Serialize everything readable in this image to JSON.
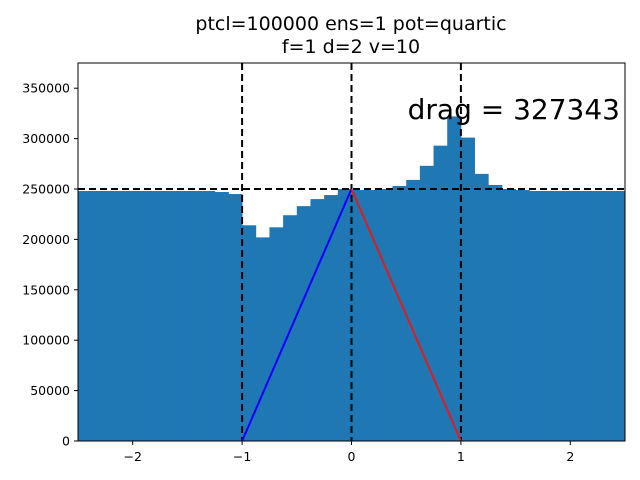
{
  "chart_data": {
    "type": "bar",
    "title_line1": "ptcl=100000 ens=1 pot=quartic",
    "title_line2": "f=1 d=2 v=10",
    "xlabel": "",
    "ylabel": "",
    "xlim": [
      -2.5,
      2.5
    ],
    "ylim": [
      0,
      375000
    ],
    "bar_width": 0.125,
    "x_ticks": [
      -2,
      -1,
      0,
      1,
      2
    ],
    "x_tick_labels": [
      "−2",
      "−1",
      "0",
      "1",
      "2"
    ],
    "y_ticks": [
      0,
      50000,
      100000,
      150000,
      200000,
      250000,
      300000,
      350000
    ],
    "y_tick_labels": [
      "0",
      "50000",
      "100000",
      "150000",
      "200000",
      "250000",
      "300000",
      "350000"
    ],
    "bins": [
      {
        "x0": -2.5,
        "value": 248000
      },
      {
        "x0": -2.375,
        "value": 248000
      },
      {
        "x0": -2.25,
        "value": 248000
      },
      {
        "x0": -2.125,
        "value": 248000
      },
      {
        "x0": -2.0,
        "value": 248000
      },
      {
        "x0": -1.875,
        "value": 248000
      },
      {
        "x0": -1.75,
        "value": 248000
      },
      {
        "x0": -1.625,
        "value": 248000
      },
      {
        "x0": -1.5,
        "value": 248000
      },
      {
        "x0": -1.375,
        "value": 248000
      },
      {
        "x0": -1.25,
        "value": 247000
      },
      {
        "x0": -1.125,
        "value": 245000
      },
      {
        "x0": -1.0,
        "value": 214000
      },
      {
        "x0": -0.875,
        "value": 202000
      },
      {
        "x0": -0.75,
        "value": 212000
      },
      {
        "x0": -0.625,
        "value": 224000
      },
      {
        "x0": -0.5,
        "value": 233000
      },
      {
        "x0": -0.375,
        "value": 240000
      },
      {
        "x0": -0.25,
        "value": 244000
      },
      {
        "x0": -0.125,
        "value": 250000
      },
      {
        "x0": 0.0,
        "value": 249000
      },
      {
        "x0": 0.125,
        "value": 249000
      },
      {
        "x0": 0.25,
        "value": 250000
      },
      {
        "x0": 0.375,
        "value": 253000
      },
      {
        "x0": 0.5,
        "value": 259000
      },
      {
        "x0": 0.625,
        "value": 273000
      },
      {
        "x0": 0.75,
        "value": 293000
      },
      {
        "x0": 0.875,
        "value": 322000
      },
      {
        "x0": 1.0,
        "value": 301000
      },
      {
        "x0": 1.125,
        "value": 265000
      },
      {
        "x0": 1.25,
        "value": 254000
      },
      {
        "x0": 1.375,
        "value": 250000
      },
      {
        "x0": 1.5,
        "value": 249000
      },
      {
        "x0": 1.625,
        "value": 248000
      },
      {
        "x0": 1.75,
        "value": 248000
      },
      {
        "x0": 1.875,
        "value": 248000
      },
      {
        "x0": 2.0,
        "value": 248000
      },
      {
        "x0": 2.125,
        "value": 248000
      },
      {
        "x0": 2.25,
        "value": 248000
      },
      {
        "x0": 2.375,
        "value": 248000
      }
    ],
    "hline_y": 250000,
    "vlines_x": [
      -1,
      0,
      1
    ],
    "blue_line": {
      "x": [
        -1,
        0
      ],
      "y": [
        0,
        250000
      ],
      "color": "#0000ff"
    },
    "red_line": {
      "x": [
        0,
        1
      ],
      "y": [
        250000,
        0
      ],
      "color": "#e41a1c"
    },
    "annotation": "drag = 327343",
    "bar_color": "#1f77b4",
    "grid": false,
    "legend": "none"
  }
}
